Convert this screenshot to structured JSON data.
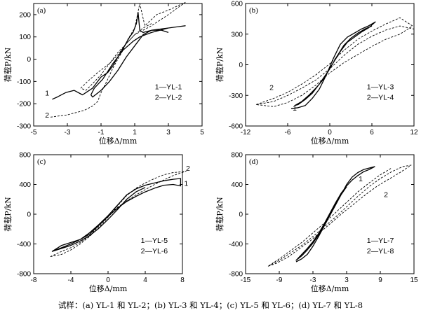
{
  "caption": "试样：(a) YL-1 和 YL-2；(b) YL-3 和 YL-4；(c) YL-5 和 YL-6；(d) YL-7 和 YL-8",
  "colors": {
    "series1": "#000000",
    "series2": "#000000",
    "axis": "#000000"
  },
  "chart_data": [
    {
      "type": "line",
      "panel": "(a)",
      "xlabel": "位移Δ/mm",
      "ylabel": "荷载P/kN",
      "xlim": [
        -5,
        5
      ],
      "ylim": [
        -300,
        250
      ],
      "xticks": [
        -5,
        -3,
        -1,
        1,
        3,
        5
      ],
      "yticks": [
        -300,
        -200,
        -100,
        0,
        100,
        200
      ],
      "grid": false,
      "legend": [
        "1—YL-1",
        "2—YL-2"
      ],
      "callouts": [
        "1",
        "2"
      ],
      "series": [
        {
          "name": "1—YL-1",
          "style": "solid",
          "x": [
            -3.9,
            -3.6,
            -3.1,
            -2.6,
            -2.1,
            -1.9,
            -1.5,
            -1.3,
            -1.0,
            -0.6,
            -0.3,
            0,
            0.4,
            0.7,
            0.9,
            1.1,
            1.2,
            1.3,
            1.5,
            2.0,
            3.0,
            4.0,
            3.0,
            2.0,
            1.3,
            0.9,
            0.3,
            -0.3,
            -0.9,
            -1.4,
            -1.6,
            -1.5,
            -1.0,
            -0.5,
            0.0,
            0.5,
            1.1,
            1.5,
            2.0,
            2.6,
            3.0
          ],
          "y": [
            -180,
            -170,
            -150,
            -140,
            -160,
            -150,
            -130,
            -110,
            -80,
            -60,
            -30,
            10,
            60,
            100,
            120,
            160,
            210,
            130,
            120,
            130,
            140,
            150,
            140,
            120,
            100,
            80,
            40,
            -20,
            -90,
            -130,
            -160,
            -170,
            -140,
            -100,
            -50,
            10,
            70,
            110,
            130,
            130,
            120
          ]
        },
        {
          "name": "2—YL-2",
          "style": "dashed",
          "x": [
            -4.0,
            -3.0,
            -2.0,
            -1.5,
            -1.2,
            -1.0,
            -0.6,
            -0.3,
            0,
            0.3,
            0.6,
            1.0,
            1.3,
            1.6,
            2.3,
            3.0,
            4.0,
            3.0,
            2.0,
            1.0,
            0.5,
            0,
            -0.5,
            -1.0,
            -1.5,
            -1.9,
            -2.2,
            -1.8,
            -1.2,
            -0.5,
            0,
            0.5,
            1.0,
            1.5,
            2.0
          ],
          "y": [
            -260,
            -250,
            -230,
            -210,
            -190,
            -150,
            -90,
            -40,
            0,
            40,
            90,
            140,
            250,
            150,
            200,
            220,
            255,
            200,
            150,
            110,
            70,
            30,
            -20,
            -70,
            -110,
            -140,
            -130,
            -100,
            -60,
            -20,
            20,
            70,
            110,
            140,
            160
          ]
        }
      ]
    },
    {
      "type": "line",
      "panel": "(b)",
      "xlabel": "位移Δ/mm",
      "ylabel": "荷载P/kN",
      "xlim": [
        -12,
        12
      ],
      "ylim": [
        -600,
        600
      ],
      "xticks": [
        -12,
        -6,
        0,
        6,
        12
      ],
      "yticks": [
        -600,
        -300,
        0,
        300,
        600
      ],
      "grid": false,
      "legend": [
        "1—YL-3",
        "2—YL-4"
      ],
      "callouts": [
        "1",
        "2"
      ],
      "series": [
        {
          "name": "1—YL-3",
          "style": "solid",
          "x": [
            -5.5,
            -4.5,
            -3.5,
            -2.5,
            -1.5,
            -0.5,
            0.5,
            1.5,
            2.5,
            3.5,
            4.5,
            5.5,
            6.5,
            5.5,
            4.5,
            3.5,
            2.5,
            1.5,
            0.5,
            -0.5,
            -1.5,
            -2.5,
            -3.5,
            -4.5,
            -5.0,
            -4.0,
            -3.0,
            -2.0,
            -1.0,
            0,
            1.0,
            2.0,
            3.0,
            4.0,
            5.0,
            6.0
          ],
          "y": [
            -430,
            -420,
            -400,
            -330,
            -240,
            -100,
            60,
            200,
            270,
            310,
            350,
            380,
            420,
            360,
            320,
            270,
            220,
            130,
            20,
            -90,
            -190,
            -280,
            -340,
            -390,
            -400,
            -360,
            -300,
            -230,
            -150,
            -40,
            80,
            190,
            260,
            310,
            350,
            380
          ]
        },
        {
          "name": "2—YL-4",
          "style": "dashed",
          "x": [
            -10.5,
            -8.0,
            -6.0,
            -4.0,
            -2.0,
            0,
            2.0,
            4.0,
            6.0,
            8.0,
            10.0,
            11.8,
            10.0,
            8.0,
            6.0,
            4.0,
            2.0,
            0,
            -2.0,
            -4.0,
            -6.0,
            -8.0,
            -10.5,
            -8.0,
            -6.0,
            -4.0,
            -2.0,
            0,
            2.0,
            4.0,
            6.0,
            8.0,
            10.0,
            12.0
          ],
          "y": [
            -390,
            -330,
            -270,
            -190,
            -100,
            10,
            140,
            250,
            330,
            400,
            460,
            380,
            300,
            250,
            180,
            100,
            20,
            -80,
            -200,
            -300,
            -370,
            -410,
            -390,
            -360,
            -300,
            -230,
            -150,
            -40,
            90,
            200,
            280,
            340,
            380,
            350
          ]
        }
      ]
    },
    {
      "type": "line",
      "panel": "(c)",
      "xlabel": "位移Δ/mm",
      "ylabel": "荷载P/kN",
      "xlim": [
        -8,
        8
      ],
      "ylim": [
        -800,
        800
      ],
      "xticks": [
        -8,
        -4,
        0,
        4,
        8
      ],
      "yticks": [
        -800,
        -400,
        0,
        400,
        800
      ],
      "grid": false,
      "legend": [
        "1—YL-5",
        "2—YL-6"
      ],
      "callouts": [
        "1",
        "2"
      ],
      "series": [
        {
          "name": "1—YL-5",
          "style": "solid",
          "x": [
            -6.0,
            -5.0,
            -4.0,
            -3.0,
            -2.0,
            -1.0,
            0,
            1.0,
            2.0,
            3.0,
            4.0,
            5.0,
            6.0,
            7.0,
            7.8,
            7.8,
            7.0,
            6.0,
            5.0,
            4.0,
            3.0,
            2.0,
            1.0,
            0,
            -1.0,
            -2.0,
            -3.0,
            -4.0,
            -5.0,
            -6.0,
            -5.0,
            -4.0,
            -3.0,
            -2.0,
            -1.0,
            0,
            1.0,
            2.0,
            3.0,
            4.0
          ],
          "y": [
            -500,
            -450,
            -400,
            -340,
            -250,
            -140,
            -20,
            120,
            260,
            340,
            390,
            420,
            450,
            470,
            480,
            380,
            400,
            390,
            350,
            300,
            240,
            170,
            80,
            -30,
            -150,
            -270,
            -340,
            -380,
            -420,
            -500,
            -460,
            -420,
            -360,
            -290,
            -190,
            -70,
            60,
            200,
            300,
            360
          ]
        },
        {
          "name": "2—YL-6",
          "style": "dashed",
          "x": [
            -6.2,
            -5.0,
            -4.0,
            -3.0,
            -2.0,
            -1.0,
            0,
            1.0,
            2.0,
            3.0,
            4.0,
            5.0,
            6.0,
            7.0,
            8.0,
            8.4,
            7.0,
            6.0,
            5.0,
            4.0,
            3.0,
            2.0,
            1.0,
            0,
            -1.0,
            -2.0,
            -3.0,
            -4.0,
            -5.0,
            -6.2
          ],
          "y": [
            -570,
            -540,
            -480,
            -400,
            -300,
            -180,
            -40,
            110,
            250,
            350,
            420,
            480,
            530,
            560,
            570,
            580,
            520,
            460,
            400,
            330,
            260,
            180,
            90,
            -30,
            -160,
            -290,
            -380,
            -450,
            -500,
            -570
          ]
        }
      ]
    },
    {
      "type": "line",
      "panel": "(d)",
      "xlabel": "位移Δ/mm",
      "ylabel": "荷载P/kN",
      "xlim": [
        -15,
        15
      ],
      "ylim": [
        -800,
        800
      ],
      "xticks": [
        -15,
        -9,
        -3,
        3,
        9,
        15
      ],
      "yticks": [
        -800,
        -400,
        0,
        400,
        800
      ],
      "grid": false,
      "legend": [
        "1—YL-7",
        "2—YL-8"
      ],
      "callouts": [
        "1",
        "2"
      ],
      "series": [
        {
          "name": "1—YL-7",
          "style": "solid",
          "x": [
            -6.0,
            -5.0,
            -4.0,
            -3.0,
            -2.0,
            -1.0,
            0,
            1.0,
            2.0,
            3.0,
            4.0,
            5.0,
            6.0,
            7.0,
            8.0,
            7.0,
            6.0,
            5.0,
            4.0,
            3.0,
            2.0,
            1.0,
            0,
            -1.0,
            -2.0,
            -3.0,
            -4.0,
            -5.0,
            -6.0,
            -5.0,
            -4.0,
            -3.0,
            -2.0,
            -1.0,
            0,
            1.0,
            2.0,
            3.0
          ],
          "y": [
            -640,
            -600,
            -540,
            -430,
            -300,
            -160,
            -20,
            120,
            260,
            400,
            500,
            560,
            600,
            620,
            640,
            600,
            570,
            520,
            460,
            380,
            280,
            150,
            10,
            -130,
            -260,
            -370,
            -460,
            -540,
            -620,
            -560,
            -480,
            -390,
            -280,
            -150,
            -10,
            130,
            260,
            370
          ]
        },
        {
          "name": "2—YL-8",
          "style": "dashed",
          "x": [
            -11.0,
            -9.0,
            -7.0,
            -5.0,
            -3.0,
            -1.0,
            1.0,
            3.0,
            5.0,
            7.0,
            9.0,
            11.0,
            13.0,
            14.5,
            12.5,
            10.5,
            8.5,
            6.5,
            4.5,
            2.5,
            0.5,
            -1.5,
            -3.5,
            -5.5,
            -7.5,
            -9.5,
            -11.0,
            -9.0,
            -7.0,
            -5.0,
            -3.0,
            -1.0,
            1.0,
            3.0,
            5.0,
            7.0,
            9.0,
            11.0
          ],
          "y": [
            -700,
            -620,
            -520,
            -420,
            -300,
            -170,
            -40,
            100,
            240,
            370,
            480,
            570,
            640,
            660,
            560,
            470,
            380,
            270,
            150,
            30,
            -100,
            -230,
            -360,
            -470,
            -580,
            -660,
            -700,
            -600,
            -490,
            -380,
            -250,
            -120,
            20,
            160,
            300,
            420,
            530,
            620
          ]
        }
      ]
    }
  ]
}
